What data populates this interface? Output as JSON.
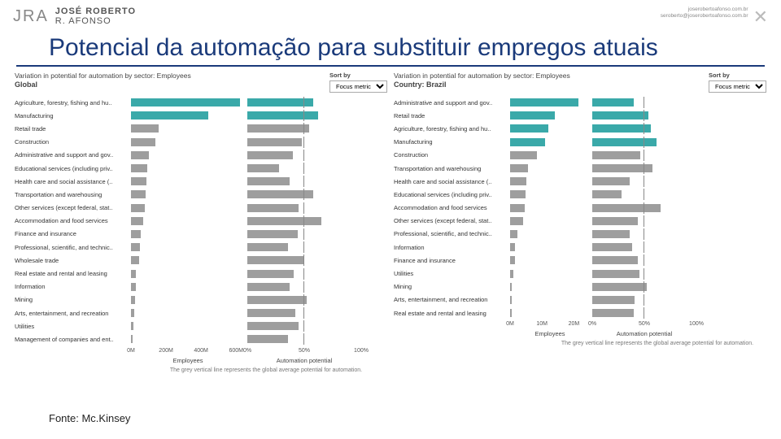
{
  "header": {
    "logo_mark": "JRA",
    "logo_line1": "JOSÉ ROBERTO",
    "logo_line2": "R. AFONSO",
    "contact_line1": "joserobertoafonso.com.br",
    "contact_line2": "seroberto@joserobertoafonso.com.br"
  },
  "title": "Potencial da automação para substituir empregos atuais",
  "sortby_label": "Sort by",
  "sortby_value": "Focus metric",
  "source_label": "Fonte: Mc.Kinsey",
  "axis_emp_title": "Employees",
  "axis_auto_title": "Automation potential",
  "footnote_text": "The grey vertical line represents the global average potential for automation.",
  "colors": {
    "teal": "#3aa9a9",
    "grey": "#9e9e9e",
    "text": "#333333",
    "title_blue": "#1a3a7a",
    "axis_text": "#555555"
  },
  "global": {
    "title_line1": "Variation in potential for automation by sector: Employees",
    "title_line2": "Global",
    "emp_max": 650,
    "emp_ticks": [
      "0M",
      "200M",
      "400M",
      "600M"
    ],
    "emp_tick_pos": [
      0,
      0.3077,
      0.6154,
      0.9231
    ],
    "auto_max": 100,
    "auto_ticks": [
      "0%",
      "50%",
      "100%"
    ],
    "auto_tick_pos": [
      0,
      0.5,
      1.0
    ],
    "global_avg_auto": 0.49,
    "rows": [
      {
        "label": "Agriculture, forestry, fishing and hu..",
        "emp": 620,
        "auto": 58,
        "highlight": true
      },
      {
        "label": "Manufacturing",
        "emp": 440,
        "auto": 62,
        "highlight": true
      },
      {
        "label": "Retail trade",
        "emp": 160,
        "auto": 54,
        "highlight": false
      },
      {
        "label": "Construction",
        "emp": 140,
        "auto": 48,
        "highlight": false
      },
      {
        "label": "Administrative and support and gov..",
        "emp": 100,
        "auto": 40,
        "highlight": false
      },
      {
        "label": "Educational services (including priv..",
        "emp": 95,
        "auto": 28,
        "highlight": false
      },
      {
        "label": "Health care and social assistance (..",
        "emp": 90,
        "auto": 37,
        "highlight": false
      },
      {
        "label": "Transportation and warehousing",
        "emp": 85,
        "auto": 58,
        "highlight": false
      },
      {
        "label": "Other services (except federal, stat..",
        "emp": 80,
        "auto": 45,
        "highlight": false
      },
      {
        "label": "Accommodation and food services",
        "emp": 70,
        "auto": 65,
        "highlight": false
      },
      {
        "label": "Finance and insurance",
        "emp": 55,
        "auto": 44,
        "highlight": false
      },
      {
        "label": "Professional, scientific, and technic..",
        "emp": 50,
        "auto": 36,
        "highlight": false
      },
      {
        "label": "Wholesale trade",
        "emp": 45,
        "auto": 50,
        "highlight": false
      },
      {
        "label": "Real estate and rental and leasing",
        "emp": 30,
        "auto": 41,
        "highlight": false
      },
      {
        "label": "Information",
        "emp": 28,
        "auto": 37,
        "highlight": false
      },
      {
        "label": "Mining",
        "emp": 22,
        "auto": 52,
        "highlight": false
      },
      {
        "label": "Arts, entertainment, and recreation",
        "emp": 20,
        "auto": 42,
        "highlight": false
      },
      {
        "label": "Utilities",
        "emp": 12,
        "auto": 45,
        "highlight": false
      },
      {
        "label": "Management of companies and ent..",
        "emp": 8,
        "auto": 36,
        "highlight": false
      }
    ]
  },
  "brazil": {
    "title_line1": "Variation in potential for automation by sector: Employees",
    "title_line2": "Country: Brazil",
    "emp_max": 25,
    "emp_ticks": [
      "0M",
      "10M",
      "20M"
    ],
    "emp_tick_pos": [
      0,
      0.4,
      0.8
    ],
    "auto_max": 100,
    "auto_ticks": [
      "0%",
      "50%",
      "100%"
    ],
    "auto_tick_pos": [
      0,
      0.5,
      1.0
    ],
    "global_avg_auto": 0.49,
    "rows": [
      {
        "label": "Administrative and support and gov..",
        "emp": 21.5,
        "auto": 40,
        "highlight": true
      },
      {
        "label": "Retail trade",
        "emp": 14,
        "auto": 54,
        "highlight": true
      },
      {
        "label": "Agriculture, forestry, fishing and hu..",
        "emp": 12,
        "auto": 56,
        "highlight": true
      },
      {
        "label": "Manufacturing",
        "emp": 11,
        "auto": 62,
        "highlight": true
      },
      {
        "label": "Construction",
        "emp": 8.5,
        "auto": 46,
        "highlight": false
      },
      {
        "label": "Transportation and warehousing",
        "emp": 5.5,
        "auto": 58,
        "highlight": false
      },
      {
        "label": "Health care and social assistance (..",
        "emp": 5,
        "auto": 36,
        "highlight": false
      },
      {
        "label": "Educational services (including priv..",
        "emp": 4.8,
        "auto": 28,
        "highlight": false
      },
      {
        "label": "Accommodation and food services",
        "emp": 4.5,
        "auto": 66,
        "highlight": false
      },
      {
        "label": "Other services (except federal, stat..",
        "emp": 4.2,
        "auto": 44,
        "highlight": false
      },
      {
        "label": "Professional, scientific, and technic..",
        "emp": 2.2,
        "auto": 36,
        "highlight": false
      },
      {
        "label": "Information",
        "emp": 1.6,
        "auto": 38,
        "highlight": false
      },
      {
        "label": "Finance and insurance",
        "emp": 1.5,
        "auto": 44,
        "highlight": false
      },
      {
        "label": "Utilities",
        "emp": 0.9,
        "auto": 45,
        "highlight": false
      },
      {
        "label": "Mining",
        "emp": 0.5,
        "auto": 52,
        "highlight": false
      },
      {
        "label": "Arts, entertainment, and recreation",
        "emp": 0.5,
        "auto": 41,
        "highlight": false
      },
      {
        "label": "Real estate and rental and leasing",
        "emp": 0.4,
        "auto": 40,
        "highlight": false
      }
    ]
  }
}
